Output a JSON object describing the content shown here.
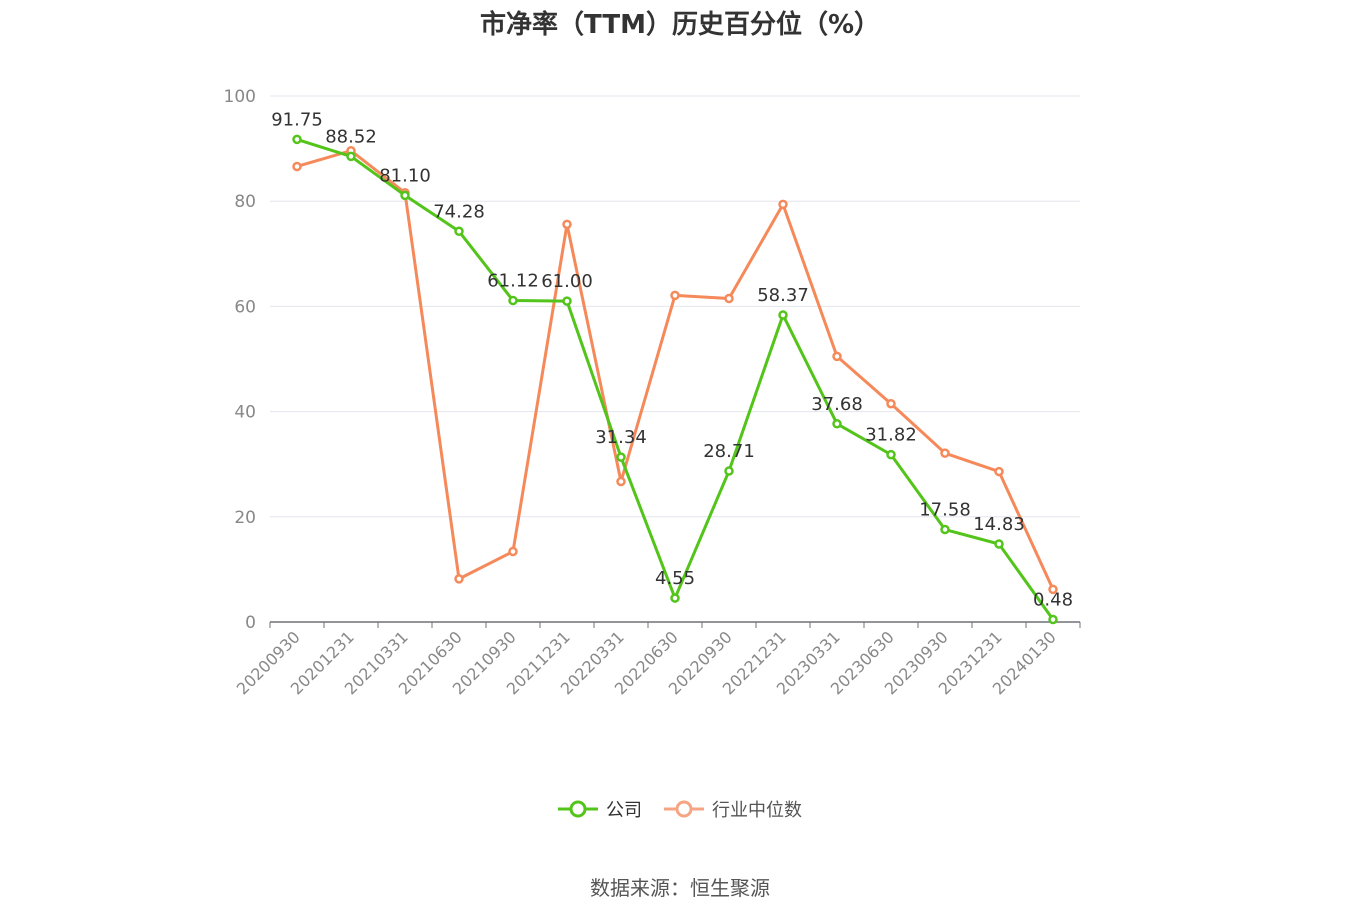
{
  "chart_data": {
    "type": "line",
    "title": "市净率（TTM）历史百分位（%）",
    "categories": [
      "20200930",
      "20201231",
      "20210331",
      "20210630",
      "20210930",
      "20211231",
      "20220331",
      "20220630",
      "20220930",
      "20221231",
      "20230331",
      "20230630",
      "20230930",
      "20231231",
      "20240130"
    ],
    "series": [
      {
        "name": "公司",
        "color": "#52c41a",
        "values": [
          91.75,
          88.52,
          81.1,
          74.28,
          61.12,
          61.0,
          31.34,
          4.55,
          28.71,
          58.37,
          37.68,
          31.82,
          17.58,
          14.83,
          0.48
        ],
        "labels": [
          "91.75",
          "88.52",
          "81.10",
          "74.28",
          "61.12",
          "61.00",
          "31.34",
          "4.55",
          "28.71",
          "58.37",
          "37.68",
          "31.82",
          "17.58",
          "14.83",
          "0.48"
        ]
      },
      {
        "name": "行业中位数",
        "color": "#f5895a",
        "values": [
          86.6,
          89.6,
          81.6,
          8.2,
          13.4,
          75.6,
          26.7,
          62.1,
          61.5,
          79.4,
          50.5,
          41.5,
          32.1,
          28.6,
          6.2
        ]
      }
    ],
    "ylim": [
      0,
      100
    ],
    "yticks": [
      "0",
      "20",
      "40",
      "60",
      "80",
      "100"
    ],
    "grid": true,
    "legend_position": "bottom"
  },
  "source": "数据来源：恒生聚源"
}
